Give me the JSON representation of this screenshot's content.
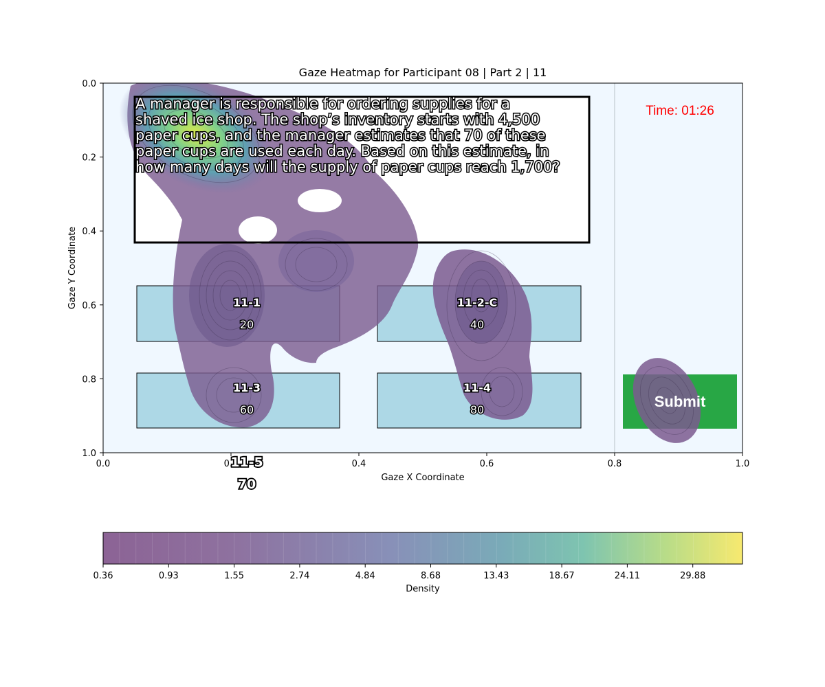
{
  "chart_data": {
    "type": "heatmap",
    "title": "Gaze Heatmap for Participant 08 | Part 2 | 11",
    "xlabel": "Gaze X Coordinate",
    "ylabel": "Gaze Y Coordinate",
    "xlim": [
      0.0,
      1.0
    ],
    "ylim": [
      0.0,
      1.0
    ],
    "y_inverted": true,
    "x_ticks": [
      "0.0",
      "0.2",
      "0.4",
      "0.6",
      "0.8",
      "1.0"
    ],
    "y_ticks": [
      "0.0",
      "0.2",
      "0.4",
      "0.6",
      "0.8",
      "1.0"
    ],
    "x_tick_values": [
      0.0,
      0.2,
      0.4,
      0.6,
      0.8,
      1.0
    ],
    "y_tick_values": [
      0.0,
      0.2,
      0.4,
      0.6,
      0.8,
      1.0
    ],
    "colorbar": {
      "label": "Density",
      "colormap": "viridis",
      "ticks": [
        "0.36",
        "0.93",
        "1.55",
        "2.74",
        "4.84",
        "8.68",
        "13.43",
        "18.67",
        "24.11",
        "29.88"
      ]
    },
    "density_peaks": [
      {
        "x": 0.16,
        "y": 0.15,
        "level": "high"
      },
      {
        "x": 0.2,
        "y": 0.58,
        "level": "medium"
      },
      {
        "x": 0.59,
        "y": 0.58,
        "level": "medium"
      },
      {
        "x": 0.34,
        "y": 0.48,
        "level": "low"
      },
      {
        "x": 0.61,
        "y": 0.8,
        "level": "low"
      },
      {
        "x": 0.19,
        "y": 0.86,
        "level": "low"
      },
      {
        "x": 0.87,
        "y": 0.85,
        "level": "low"
      }
    ]
  },
  "stimulus": {
    "question_lines": [
      "A manager is responsible for ordering supplies for a",
      "shaved ice shop. The shop’s inventory starts with 4,500",
      "paper cups, and the manager estimates that 70 of these",
      "paper cups are used each day. Based on this estimate, in",
      "how many days will the supply of paper cups reach 1,700?"
    ],
    "timer": "Time: 01:26",
    "submit_label": "Submit",
    "options": [
      {
        "id": "11-1",
        "value": "20"
      },
      {
        "id": "11-2-C",
        "value": "40"
      },
      {
        "id": "11-3",
        "value": "60"
      },
      {
        "id": "11-4",
        "value": "80"
      },
      {
        "id": "11-5",
        "value": "70"
      }
    ]
  },
  "colors": {
    "background": "#f0f8ff",
    "option_fill": "#add8e6",
    "submit_fill": "#28a745",
    "timer": "#ff0000"
  }
}
